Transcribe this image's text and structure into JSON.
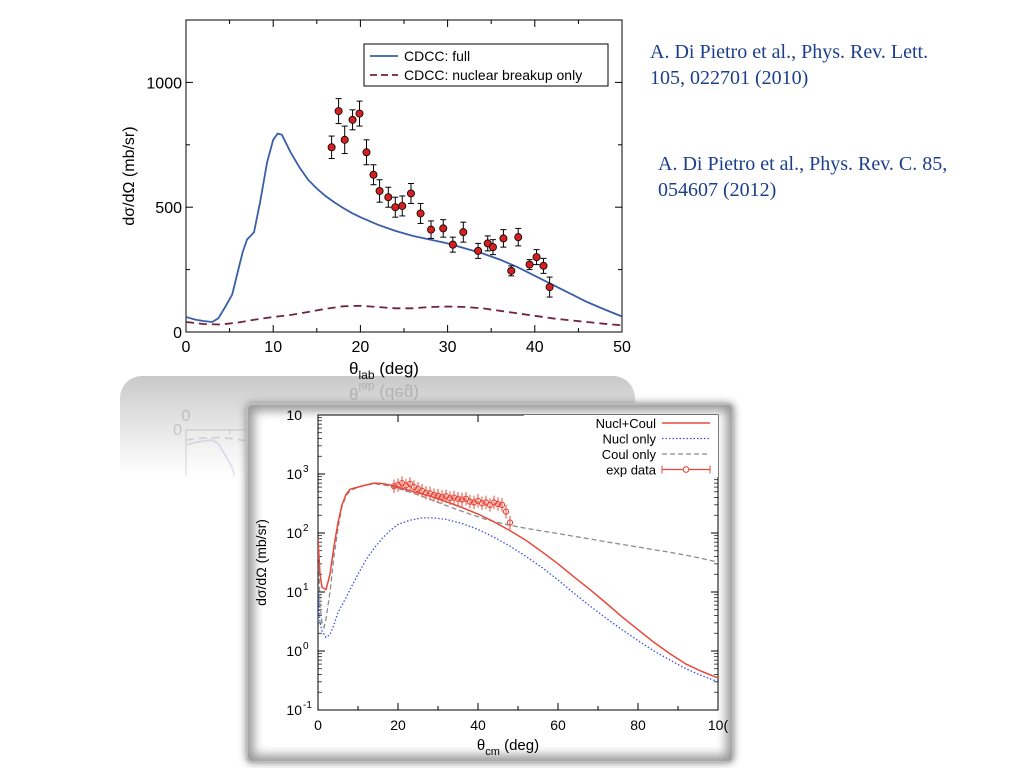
{
  "references": [
    {
      "text": "A. Di Pietro et al., Phys. Rev. Lett.\n105, 022701 (2010)"
    },
    {
      "text": "A. Di Pietro et al., Phys. Rev. C. 85,\n054607 (2012)"
    }
  ],
  "colors": {
    "reference_text": "#1c3f8c",
    "full": "#3a5ea8",
    "breakup": "#6e2346",
    "exp_marker": "#d42020",
    "nucl_coul": "#e8483a",
    "nucl_only": "#3b4fe0",
    "coul_only": "#8c8c8c"
  },
  "chart_data": [
    {
      "type": "line",
      "xlabel": "θ",
      "xlabel_sub": "lab",
      "xlabel_unit": " (deg)",
      "ylabel": "dσ/dΩ (mb/sr)",
      "xlim": [
        0,
        50
      ],
      "ylim": [
        0,
        1250
      ],
      "xticks": [
        0,
        10,
        20,
        30,
        40,
        50
      ],
      "yticks": [
        0,
        500,
        1000
      ],
      "legend_position": "top-right",
      "series": [
        {
          "name": "CDCC: full",
          "style": "solid",
          "points": [
            [
              0,
              60
            ],
            [
              1,
              50
            ],
            [
              2,
              44
            ],
            [
              3,
              40
            ],
            [
              3.7,
              55
            ],
            [
              4.5,
              100
            ],
            [
              5.3,
              150
            ],
            [
              6,
              250
            ],
            [
              6.5,
              320
            ],
            [
              7,
              370
            ],
            [
              7.8,
              400
            ],
            [
              8.5,
              520
            ],
            [
              9.3,
              680
            ],
            [
              10,
              770
            ],
            [
              10.5,
              795
            ],
            [
              11,
              790
            ],
            [
              12,
              720
            ],
            [
              13,
              660
            ],
            [
              14,
              610
            ],
            [
              15,
              575
            ],
            [
              16,
              545
            ],
            [
              17,
              520
            ],
            [
              18,
              497
            ],
            [
              19,
              477
            ],
            [
              20,
              460
            ],
            [
              22,
              430
            ],
            [
              24,
              405
            ],
            [
              26,
              385
            ],
            [
              28,
              370
            ],
            [
              30,
              355
            ],
            [
              32,
              335
            ],
            [
              34,
              315
            ],
            [
              36,
              290
            ],
            [
              38,
              260
            ],
            [
              40,
              225
            ],
            [
              42,
              190
            ],
            [
              44,
              155
            ],
            [
              46,
              120
            ],
            [
              48,
              90
            ],
            [
              50,
              62
            ]
          ]
        },
        {
          "name": "CDCC: nuclear breakup only",
          "style": "dashed",
          "points": [
            [
              0,
              40
            ],
            [
              2,
              32
            ],
            [
              4,
              30
            ],
            [
              6,
              38
            ],
            [
              8,
              50
            ],
            [
              10,
              60
            ],
            [
              12,
              68
            ],
            [
              14,
              80
            ],
            [
              16,
              93
            ],
            [
              18,
              103
            ],
            [
              20,
              105
            ],
            [
              22,
              100
            ],
            [
              24,
              95
            ],
            [
              26,
              95
            ],
            [
              28,
              100
            ],
            [
              30,
              102
            ],
            [
              32,
              100
            ],
            [
              34,
              95
            ],
            [
              36,
              85
            ],
            [
              38,
              75
            ],
            [
              40,
              65
            ],
            [
              42,
              55
            ],
            [
              44,
              47
            ],
            [
              46,
              40
            ],
            [
              48,
              33
            ],
            [
              50,
              27
            ]
          ]
        },
        {
          "name": "",
          "style": "points",
          "points": [
            [
              16.7,
              740,
              45
            ],
            [
              17.5,
              885,
              50
            ],
            [
              18.2,
              770,
              55
            ],
            [
              19.1,
              850,
              40
            ],
            [
              19.9,
              875,
              50
            ],
            [
              20.7,
              720,
              50
            ],
            [
              21.5,
              630,
              40
            ],
            [
              22.2,
              565,
              45
            ],
            [
              23.2,
              540,
              40
            ],
            [
              24,
              500,
              40
            ],
            [
              24.8,
              505,
              40
            ],
            [
              25.8,
              555,
              40
            ],
            [
              26.9,
              475,
              40
            ],
            [
              28.1,
              410,
              35
            ],
            [
              29.5,
              415,
              35
            ],
            [
              30.6,
              350,
              30
            ],
            [
              31.8,
              400,
              40
            ],
            [
              33.5,
              325,
              30
            ],
            [
              34.6,
              355,
              30
            ],
            [
              35.2,
              340,
              30
            ],
            [
              36.4,
              375,
              35
            ],
            [
              37.3,
              245,
              20
            ],
            [
              38.1,
              380,
              35
            ],
            [
              39.4,
              270,
              20
            ],
            [
              40.2,
              300,
              30
            ],
            [
              41,
              265,
              30
            ],
            [
              41.7,
              180,
              40
            ]
          ]
        }
      ]
    },
    {
      "type": "line",
      "xlabel": "θ",
      "xlabel_sub": "cm",
      "xlabel_unit": " (deg)",
      "ylabel": "dσ/dΩ (mb/sr)",
      "yscale": "log",
      "xlim": [
        0,
        100
      ],
      "ylim": [
        0.1,
        10000
      ],
      "xticks": [
        "0",
        "20",
        "40",
        "60",
        "80",
        "10("
      ],
      "yticks": [
        {
          "v": 0.1,
          "label": "10",
          "exp": "-1"
        },
        {
          "v": 1,
          "label": "10",
          "exp": "0"
        },
        {
          "v": 10,
          "label": "10",
          "exp": "1"
        },
        {
          "v": 100,
          "label": "10",
          "exp": "2"
        },
        {
          "v": 1000,
          "label": "10",
          "exp": "3"
        },
        {
          "v": 10000,
          "label": "10",
          "exp": ""
        }
      ],
      "legend_position": "top-right",
      "series": [
        {
          "name": "Nucl+Coul",
          "style": "solid",
          "points": [
            [
              0,
              80
            ],
            [
              0.5,
              20
            ],
            [
              1,
              12
            ],
            [
              2,
              11
            ],
            [
              3,
              20
            ],
            [
              4,
              60
            ],
            [
              5,
              150
            ],
            [
              6,
              300
            ],
            [
              7,
              450
            ],
            [
              8,
              550
            ],
            [
              10,
              600
            ],
            [
              12,
              650
            ],
            [
              14,
              700
            ],
            [
              16,
              690
            ],
            [
              18,
              650
            ],
            [
              20,
              600
            ],
            [
              24,
              500
            ],
            [
              28,
              420
            ],
            [
              32,
              340
            ],
            [
              36,
              270
            ],
            [
              40,
              210
            ],
            [
              44,
              155
            ],
            [
              48,
              110
            ],
            [
              52,
              75
            ],
            [
              56,
              48
            ],
            [
              60,
              30
            ],
            [
              64,
              18
            ],
            [
              68,
              11
            ],
            [
              72,
              6.5
            ],
            [
              76,
              3.8
            ],
            [
              80,
              2.3
            ],
            [
              84,
              1.4
            ],
            [
              88,
              0.9
            ],
            [
              92,
              0.6
            ],
            [
              96,
              0.45
            ],
            [
              100,
              0.35
            ]
          ]
        },
        {
          "name": "Nucl only",
          "style": "dotted",
          "points": [
            [
              0,
              10
            ],
            [
              0.5,
              3
            ],
            [
              1,
              2.2
            ],
            [
              2,
              1.7
            ],
            [
              3,
              1.9
            ],
            [
              4,
              2.8
            ],
            [
              5,
              4.5
            ],
            [
              6,
              6
            ],
            [
              7,
              8
            ],
            [
              8,
              11
            ],
            [
              10,
              20
            ],
            [
              12,
              35
            ],
            [
              14,
              55
            ],
            [
              16,
              80
            ],
            [
              18,
              110
            ],
            [
              20,
              140
            ],
            [
              23,
              165
            ],
            [
              26,
              180
            ],
            [
              29,
              180
            ],
            [
              32,
              170
            ],
            [
              36,
              145
            ],
            [
              40,
              115
            ],
            [
              44,
              85
            ],
            [
              48,
              60
            ],
            [
              52,
              40
            ],
            [
              56,
              26
            ],
            [
              60,
              16
            ],
            [
              64,
              9.5
            ],
            [
              68,
              5.8
            ],
            [
              72,
              3.6
            ],
            [
              76,
              2.3
            ],
            [
              80,
              1.5
            ],
            [
              84,
              1
            ],
            [
              88,
              0.7
            ],
            [
              92,
              0.5
            ],
            [
              96,
              0.38
            ],
            [
              100,
              0.3
            ]
          ]
        },
        {
          "name": "Coul only",
          "style": "dashed",
          "points": [
            [
              0,
              80
            ],
            [
              0.5,
              6
            ],
            [
              1,
              3
            ],
            [
              1.5,
              2.5
            ],
            [
              2,
              3.5
            ],
            [
              3,
              10
            ],
            [
              4,
              40
            ],
            [
              5,
              120
            ],
            [
              6,
              280
            ],
            [
              7,
              420
            ],
            [
              8,
              520
            ],
            [
              10,
              600
            ],
            [
              12,
              650
            ],
            [
              14,
              680
            ],
            [
              16,
              660
            ],
            [
              18,
              620
            ],
            [
              22,
              520
            ],
            [
              26,
              420
            ],
            [
              30,
              330
            ],
            [
              34,
              260
            ],
            [
              38,
              210
            ],
            [
              42,
              170
            ],
            [
              46,
              145
            ],
            [
              48,
              135
            ],
            [
              52,
              120
            ],
            [
              56,
              108
            ],
            [
              60,
              98
            ],
            [
              64,
              88
            ],
            [
              68,
              79
            ],
            [
              72,
              71
            ],
            [
              76,
              64
            ],
            [
              80,
              58
            ],
            [
              84,
              52
            ],
            [
              88,
              47
            ],
            [
              92,
              42
            ],
            [
              96,
              37
            ],
            [
              100,
              32
            ]
          ]
        },
        {
          "name": "exp data",
          "style": "points",
          "points": [
            [
              19,
              620
            ],
            [
              20,
              650
            ],
            [
              21,
              700
            ],
            [
              22,
              640
            ],
            [
              23,
              680
            ],
            [
              24,
              600
            ],
            [
              25,
              560
            ],
            [
              26,
              520
            ],
            [
              27,
              480
            ],
            [
              28,
              470
            ],
            [
              29,
              440
            ],
            [
              30,
              430
            ],
            [
              31,
              410
            ],
            [
              32,
              420
            ],
            [
              33,
              390
            ],
            [
              34,
              400
            ],
            [
              35,
              380
            ],
            [
              36,
              370
            ],
            [
              37,
              380
            ],
            [
              38,
              340
            ],
            [
              39,
              330
            ],
            [
              40,
              350
            ],
            [
              41,
              320
            ],
            [
              42,
              330
            ],
            [
              43,
              300
            ],
            [
              44,
              330
            ],
            [
              45,
              310
            ],
            [
              46,
              300
            ],
            [
              47,
              230
            ],
            [
              48,
              150
            ]
          ]
        }
      ]
    }
  ]
}
